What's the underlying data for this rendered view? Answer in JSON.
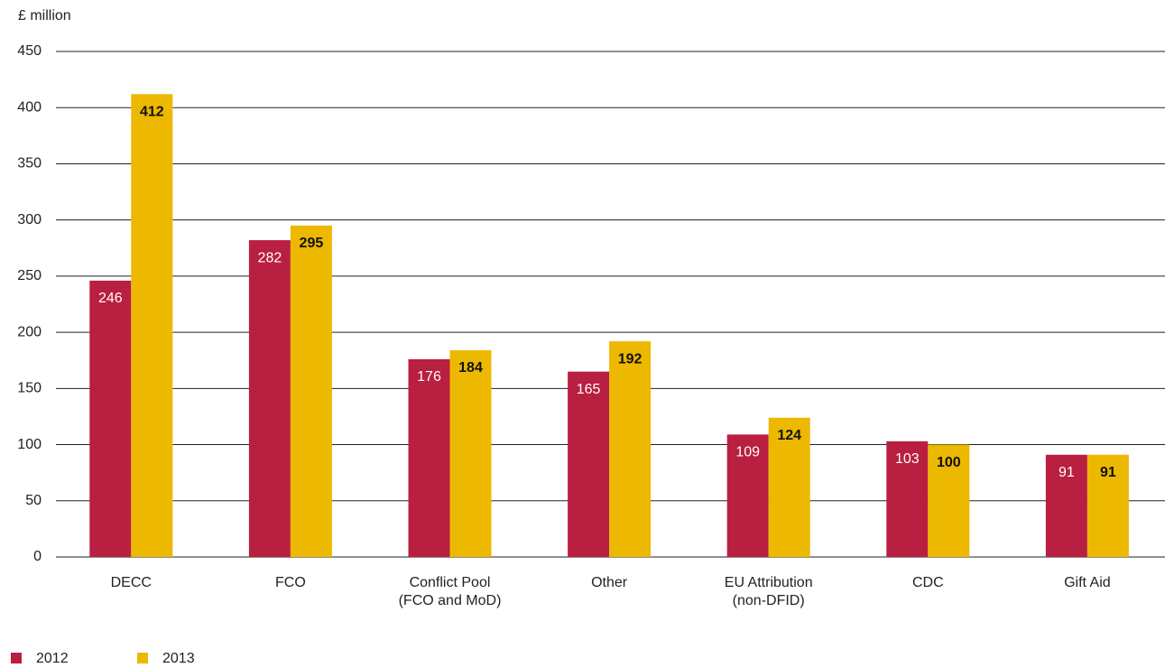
{
  "chart_data": {
    "type": "bar",
    "y_label": "£ million",
    "categories": [
      "DECC",
      "FCO",
      "Conflict Pool\n(FCO and MoD)",
      "Other",
      "EU Attribution\n(non-DFID)",
      "CDC",
      "Gift Aid"
    ],
    "series": [
      {
        "name": "2012",
        "color": "#b91f40",
        "values": [
          246,
          282,
          176,
          165,
          109,
          103,
          91
        ]
      },
      {
        "name": "2013",
        "color": "#ecb800",
        "values": [
          412,
          295,
          184,
          192,
          124,
          100,
          91
        ]
      }
    ],
    "ylim": [
      0,
      450
    ],
    "yticks": [
      0,
      50,
      100,
      150,
      200,
      250,
      300,
      350,
      400,
      450
    ],
    "grid": true
  }
}
